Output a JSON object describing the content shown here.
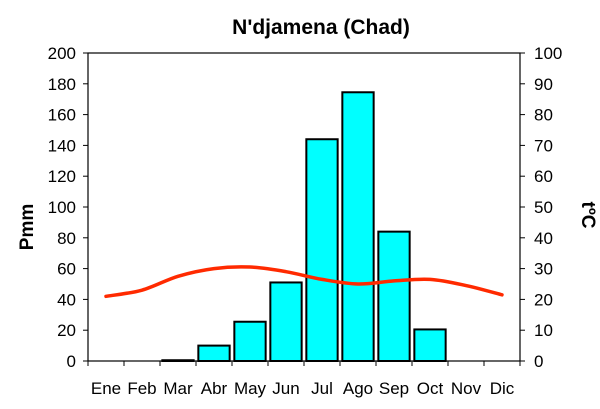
{
  "chart_data": {
    "type": "bar",
    "title": "N'djamena (Chad)",
    "ylabel": "Pmm",
    "y2label": "tºC",
    "categories": [
      "Ene",
      "Feb",
      "Mar",
      "Abr",
      "May",
      "Jun",
      "Jul",
      "Ago",
      "Sep",
      "Oct",
      "Nov",
      "Dic"
    ],
    "ylim": [
      0,
      200
    ],
    "y2lim": [
      0,
      100
    ],
    "yticks": [
      0,
      20,
      40,
      60,
      80,
      100,
      120,
      140,
      160,
      180,
      200
    ],
    "y2ticks": [
      0,
      10,
      20,
      30,
      40,
      50,
      60,
      70,
      80,
      90,
      100
    ],
    "grid": false,
    "series": [
      {
        "type": "bar",
        "axis": "left",
        "color": "#00ffff",
        "values": [
          0,
          0,
          0.5,
          10,
          25.5,
          51,
          144,
          174.5,
          84,
          20.5,
          0,
          0
        ]
      },
      {
        "type": "line",
        "axis": "right",
        "color": "#ff2a00",
        "values": [
          21,
          23,
          27.5,
          30,
          30.5,
          29,
          26.5,
          25,
          26,
          26.5,
          24.5,
          21.5
        ]
      }
    ]
  }
}
